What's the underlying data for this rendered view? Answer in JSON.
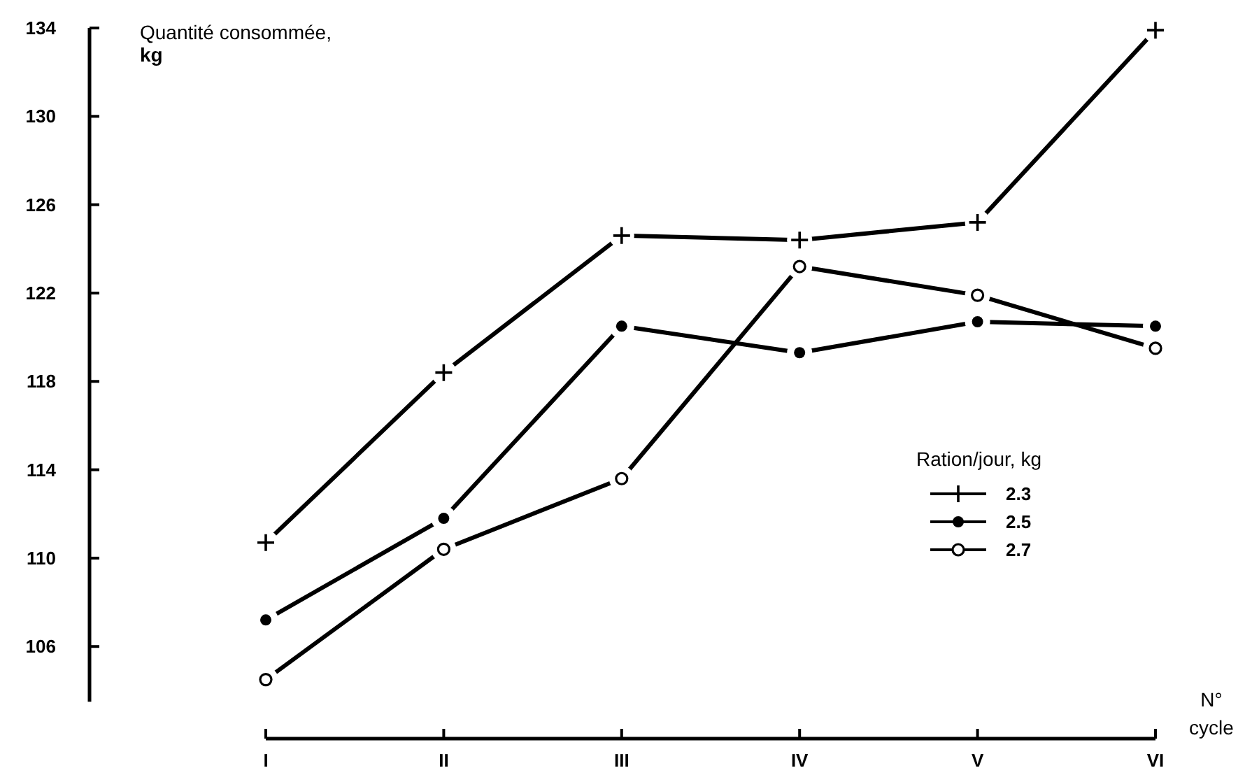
{
  "chart_data": {
    "type": "line",
    "ylabel": "Quantité consommée, kg",
    "xlabel": "N° cycle",
    "legend_title": "Ration/jour, kg",
    "legend": "right",
    "categories": [
      "I",
      "II",
      "III",
      "IV",
      "V",
      "VI"
    ],
    "ylim": [
      103.5,
      134
    ],
    "yticks": [
      106,
      110,
      114,
      118,
      122,
      126,
      130,
      134
    ],
    "grid": false,
    "series": [
      {
        "name": "2.3",
        "color": "#000000",
        "marker": "cross",
        "values": [
          110.7,
          118.4,
          124.6,
          124.4,
          125.2,
          133.9
        ]
      },
      {
        "name": "2.5",
        "color": "#000000",
        "marker": "circle",
        "values": [
          107.2,
          111.8,
          120.5,
          119.3,
          120.7,
          120.5
        ]
      },
      {
        "name": "2.7",
        "color": "#000000",
        "marker": "circle-open",
        "values": [
          104.5,
          110.4,
          113.6,
          123.2,
          121.9,
          119.5
        ]
      }
    ]
  }
}
